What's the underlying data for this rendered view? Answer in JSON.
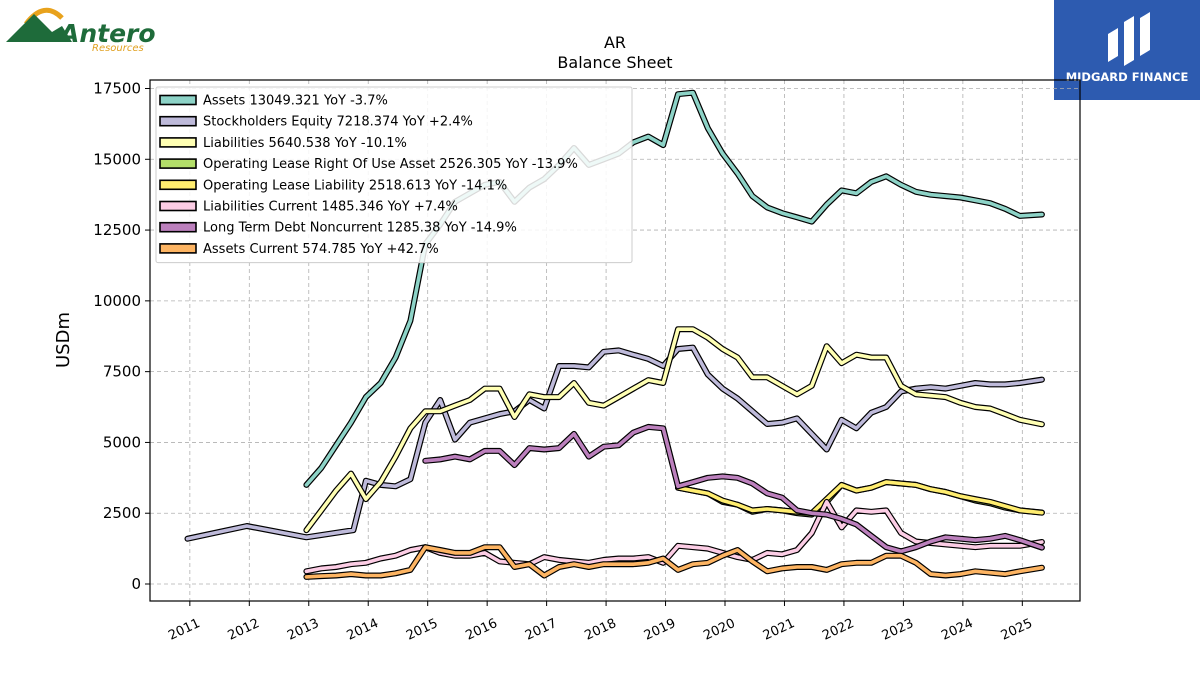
{
  "logos": {
    "left_name": "Antero",
    "left_sub": "Resources",
    "right_name": "MIDGARD FINANCE"
  },
  "colors": {
    "assets": "#8dd3c7",
    "stockholders_equity": "#bebada",
    "liabilities": "#ffffb3",
    "operating_lease_rou": "#b3de69",
    "operating_lease_liability": "#ffed6f",
    "liabilities_current": "#fccde5",
    "long_term_debt": "#bc80bd",
    "assets_current": "#fdb462",
    "outline": "#000000",
    "grid": "#b0b0b0"
  },
  "chart_data": {
    "type": "line",
    "title": "AR",
    "subtitle": "Balance  Sheet",
    "xlabel": "",
    "ylabel": "USDm",
    "xlim": [
      2010.33,
      2025.97
    ],
    "ylim": [
      -600,
      17800
    ],
    "grid": true,
    "legend_position": "top-left",
    "x_ticks": [
      "2011",
      "2012",
      "2013",
      "2014",
      "2015",
      "2016",
      "2017",
      "2018",
      "2019",
      "2020",
      "2021",
      "2022",
      "2023",
      "2024",
      "2025"
    ],
    "y_ticks": [
      "0",
      "2500",
      "5000",
      "7500",
      "10000",
      "12500",
      "15000",
      "17500"
    ],
    "series": [
      {
        "name": "Assets",
        "legend": "Assets  13049.321 YoY -3.7%",
        "color_key": "assets",
        "x": [
          2012.96,
          2013.21,
          2013.46,
          2013.71,
          2013.96,
          2014.21,
          2014.46,
          2014.71,
          2014.96,
          2015.21,
          2015.46,
          2015.71,
          2015.96,
          2016.21,
          2016.46,
          2016.71,
          2016.96,
          2017.21,
          2017.46,
          2017.71,
          2017.96,
          2018.21,
          2018.46,
          2018.71,
          2018.96,
          2019.21,
          2019.46,
          2019.71,
          2019.96,
          2020.21,
          2020.46,
          2020.71,
          2020.96,
          2021.21,
          2021.46,
          2021.71,
          2021.96,
          2022.21,
          2022.46,
          2022.71,
          2022.96,
          2023.21,
          2023.46,
          2023.71,
          2023.96,
          2024.21,
          2024.46,
          2024.71,
          2024.96,
          2025.33
        ],
        "y": [
          3500,
          4100,
          4900,
          5700,
          6600,
          7100,
          8000,
          9300,
          12000,
          12700,
          13500,
          13800,
          14100,
          14200,
          13500,
          14000,
          14300,
          14800,
          15400,
          14800,
          15000,
          15200,
          15600,
          15800,
          15500,
          17300,
          17350,
          16100,
          15200,
          14500,
          13700,
          13300,
          13100,
          12950,
          12800,
          13400,
          13900,
          13800,
          14200,
          14400,
          14100,
          13850,
          13750,
          13700,
          13650,
          13550,
          13450,
          13250,
          13000,
          13049.321
        ]
      },
      {
        "name": "Stockholders Equity",
        "legend": "Stockholders Equity  7218.374 YoY +2.4%",
        "color_key": "stockholders_equity",
        "x": [
          2010.96,
          2011.96,
          2012.96,
          2013.75,
          2013.96,
          2014.21,
          2014.46,
          2014.71,
          2014.96,
          2015.21,
          2015.46,
          2015.71,
          2015.96,
          2016.21,
          2016.46,
          2016.71,
          2016.96,
          2017.21,
          2017.46,
          2017.71,
          2017.96,
          2018.21,
          2018.46,
          2018.71,
          2018.96,
          2019.21,
          2019.46,
          2019.71,
          2019.96,
          2020.21,
          2020.46,
          2020.71,
          2020.96,
          2021.21,
          2021.46,
          2021.71,
          2021.96,
          2022.21,
          2022.46,
          2022.71,
          2022.96,
          2023.21,
          2023.46,
          2023.71,
          2023.96,
          2024.21,
          2024.46,
          2024.71,
          2024.96,
          2025.33
        ],
        "y": [
          1600,
          2050,
          1650,
          1900,
          3650,
          3500,
          3450,
          3700,
          5700,
          6500,
          5100,
          5700,
          5850,
          6000,
          6100,
          6500,
          6200,
          7700,
          7700,
          7650,
          8200,
          8250,
          8100,
          7950,
          7700,
          8300,
          8350,
          7400,
          6900,
          6550,
          6100,
          5650,
          5700,
          5850,
          5300,
          4750,
          5800,
          5500,
          6050,
          6250,
          6800,
          6900,
          6950,
          6900,
          7000,
          7100,
          7050,
          7050,
          7100,
          7218.374
        ]
      },
      {
        "name": "Liabilities",
        "legend": "Liabilities  5640.538 YoY -10.1%",
        "color_key": "liabilities",
        "x": [
          2012.96,
          2013.21,
          2013.46,
          2013.71,
          2013.96,
          2014.21,
          2014.46,
          2014.71,
          2014.96,
          2015.21,
          2015.46,
          2015.71,
          2015.96,
          2016.21,
          2016.46,
          2016.71,
          2016.96,
          2017.21,
          2017.46,
          2017.71,
          2017.96,
          2018.21,
          2018.46,
          2018.71,
          2018.96,
          2019.21,
          2019.46,
          2019.71,
          2019.96,
          2020.21,
          2020.46,
          2020.71,
          2020.96,
          2021.21,
          2021.46,
          2021.71,
          2021.96,
          2022.21,
          2022.46,
          2022.71,
          2022.96,
          2023.21,
          2023.46,
          2023.71,
          2023.96,
          2024.21,
          2024.46,
          2024.71,
          2024.96,
          2025.33
        ],
        "y": [
          1900,
          2600,
          3300,
          3900,
          3000,
          3600,
          4500,
          5500,
          6100,
          6100,
          6300,
          6500,
          6900,
          6900,
          5900,
          6700,
          6600,
          6600,
          7100,
          6400,
          6300,
          6600,
          6900,
          7200,
          7100,
          9000,
          9000,
          8700,
          8300,
          8000,
          7300,
          7300,
          7000,
          6700,
          7000,
          8400,
          7800,
          8100,
          8000,
          8000,
          7000,
          6700,
          6650,
          6600,
          6400,
          6250,
          6200,
          6000,
          5800,
          5640.538
        ]
      },
      {
        "name": "Operating Lease Right Of Use Asset",
        "legend": "Operating Lease Right Of Use Asset  2526.305 YoY -13.9%",
        "color_key": "operating_lease_rou",
        "x": [
          2019.21,
          2019.46,
          2019.71,
          2019.96,
          2020.21,
          2020.46,
          2020.71,
          2020.96,
          2021.21,
          2021.46,
          2021.71,
          2021.96,
          2022.21,
          2022.46,
          2022.71,
          2022.96,
          2023.21,
          2023.46,
          2023.71,
          2023.96,
          2024.21,
          2024.46,
          2024.71,
          2024.96,
          2025.33
        ],
        "y": [
          3400,
          3300,
          3200,
          2900,
          2800,
          2550,
          2650,
          2600,
          2500,
          2450,
          2900,
          3500,
          3300,
          3400,
          3600,
          3550,
          3500,
          3350,
          3250,
          3100,
          2950,
          2850,
          2700,
          2600,
          2526.305
        ]
      },
      {
        "name": "Operating Lease Liability",
        "legend": "Operating Lease Liability  2518.613 YoY -14.1%",
        "color_key": "operating_lease_liability",
        "x": [
          2019.21,
          2019.46,
          2019.71,
          2019.96,
          2020.21,
          2020.46,
          2020.71,
          2020.96,
          2021.21,
          2021.46,
          2021.71,
          2021.96,
          2022.21,
          2022.46,
          2022.71,
          2022.96,
          2023.21,
          2023.46,
          2023.71,
          2023.96,
          2024.21,
          2024.46,
          2024.71,
          2024.96,
          2025.33
        ],
        "y": [
          3400,
          3300,
          3200,
          2950,
          2800,
          2600,
          2650,
          2600,
          2550,
          2500,
          3000,
          3500,
          3300,
          3400,
          3600,
          3550,
          3500,
          3350,
          3250,
          3100,
          3000,
          2900,
          2750,
          2600,
          2518.613
        ]
      },
      {
        "name": "Liabilities Current",
        "legend": "Liabilities Current  1485.346 YoY +7.4%",
        "color_key": "liabilities_current",
        "x": [
          2012.96,
          2013.21,
          2013.46,
          2013.71,
          2013.96,
          2014.21,
          2014.46,
          2014.71,
          2014.96,
          2015.21,
          2015.46,
          2015.71,
          2015.96,
          2016.21,
          2016.46,
          2016.71,
          2016.96,
          2017.21,
          2017.46,
          2017.71,
          2017.96,
          2018.21,
          2018.46,
          2018.71,
          2018.96,
          2019.21,
          2019.46,
          2019.71,
          2019.96,
          2020.21,
          2020.46,
          2020.71,
          2020.96,
          2021.21,
          2021.46,
          2021.71,
          2021.96,
          2022.21,
          2022.46,
          2022.71,
          2022.96,
          2023.21,
          2023.46,
          2023.71,
          2023.96,
          2024.21,
          2024.46,
          2024.71,
          2024.96,
          2025.33
        ],
        "y": [
          450,
          550,
          600,
          700,
          750,
          900,
          1000,
          1200,
          1300,
          1100,
          1000,
          1000,
          1100,
          800,
          750,
          700,
          950,
          850,
          800,
          750,
          850,
          900,
          900,
          950,
          750,
          1350,
          1300,
          1250,
          1100,
          950,
          850,
          1100,
          1050,
          1200,
          1800,
          2900,
          2000,
          2600,
          2550,
          2600,
          1800,
          1500,
          1450,
          1400,
          1350,
          1300,
          1350,
          1350,
          1350,
          1485.346
        ]
      },
      {
        "name": "Long Term Debt Noncurrent",
        "legend": "Long Term Debt Noncurrent  1285.38 YoY -14.9%",
        "color_key": "long_term_debt",
        "x": [
          2014.96,
          2015.21,
          2015.46,
          2015.71,
          2015.96,
          2016.21,
          2016.46,
          2016.71,
          2016.96,
          2017.21,
          2017.46,
          2017.71,
          2017.96,
          2018.21,
          2018.46,
          2018.71,
          2018.96,
          2019.21,
          2019.46,
          2019.71,
          2019.96,
          2020.21,
          2020.46,
          2020.71,
          2020.96,
          2021.21,
          2021.46,
          2021.71,
          2021.96,
          2022.21,
          2022.46,
          2022.71,
          2022.96,
          2023.21,
          2023.46,
          2023.71,
          2023.96,
          2024.21,
          2024.46,
          2024.71,
          2024.96,
          2025.33
        ],
        "y": [
          4350,
          4400,
          4500,
          4400,
          4700,
          4700,
          4200,
          4800,
          4750,
          4800,
          5300,
          4500,
          4850,
          4900,
          5350,
          5550,
          5500,
          3450,
          3600,
          3750,
          3800,
          3750,
          3550,
          3200,
          3050,
          2600,
          2500,
          2450,
          2300,
          2100,
          1700,
          1300,
          1150,
          1300,
          1500,
          1650,
          1600,
          1550,
          1600,
          1700,
          1550,
          1285.38
        ]
      },
      {
        "name": "Assets Current",
        "legend": "Assets Current  574.785 YoY +42.7%",
        "color_key": "assets_current",
        "x": [
          2012.96,
          2013.21,
          2013.46,
          2013.71,
          2013.96,
          2014.21,
          2014.46,
          2014.71,
          2014.96,
          2015.21,
          2015.46,
          2015.71,
          2015.96,
          2016.21,
          2016.46,
          2016.71,
          2016.96,
          2017.21,
          2017.46,
          2017.71,
          2017.96,
          2018.21,
          2018.46,
          2018.71,
          2018.96,
          2019.21,
          2019.46,
          2019.71,
          2019.96,
          2020.21,
          2020.46,
          2020.71,
          2020.96,
          2021.21,
          2021.46,
          2021.71,
          2021.96,
          2022.21,
          2022.46,
          2022.71,
          2022.96,
          2023.21,
          2023.46,
          2023.71,
          2023.96,
          2024.21,
          2024.46,
          2024.71,
          2024.96,
          2025.33
        ],
        "y": [
          250,
          280,
          300,
          350,
          300,
          300,
          380,
          500,
          1300,
          1200,
          1100,
          1100,
          1300,
          1300,
          600,
          700,
          300,
          600,
          700,
          600,
          700,
          700,
          700,
          750,
          900,
          500,
          700,
          750,
          1000,
          1200,
          800,
          450,
          550,
          600,
          600,
          500,
          700,
          750,
          750,
          1000,
          1000,
          750,
          350,
          300,
          350,
          450,
          400,
          350,
          450,
          574.785
        ]
      }
    ]
  }
}
